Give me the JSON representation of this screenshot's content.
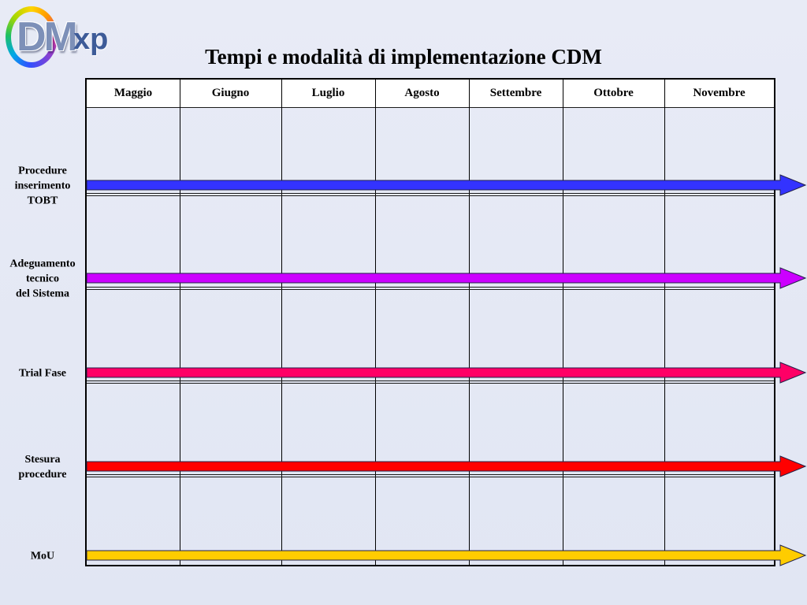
{
  "logo": {
    "main": "DM",
    "sub": "xp"
  },
  "colors": {
    "background": "#e4e8f5",
    "header_fill": "#ffffff",
    "grid": "#000000"
  },
  "chart_data": {
    "type": "bar",
    "orientation": "horizontal",
    "title": "Tempi e modalità di implementazione CDM",
    "categories": [
      "Maggio",
      "Giugno",
      "Luglio",
      "Agosto",
      "Settembre",
      "Ottobre",
      "Novembre"
    ],
    "series": [
      {
        "name": "Procedure\ninserimento\nTOBT",
        "start": "Maggio",
        "end": "Novembre",
        "continues": true,
        "color": "#3333ff"
      },
      {
        "name": "Adeguamento\ntecnico\ndel Sistema",
        "start": "Maggio",
        "end": "Novembre",
        "continues": true,
        "color": "#cc00ff"
      },
      {
        "name": "Trial Fase",
        "start": "Maggio",
        "end": "Novembre",
        "continues": true,
        "color": "#ff0066"
      },
      {
        "name": "Stesura\nprocedure",
        "start": "Maggio",
        "end": "Novembre",
        "continues": true,
        "color": "#ff0000"
      },
      {
        "name": "MoU",
        "start": "Maggio",
        "end": "Novembre",
        "continues": true,
        "color": "#ffcc00"
      }
    ],
    "xlabel": "",
    "ylabel": "",
    "grid": true,
    "legend": "none"
  }
}
